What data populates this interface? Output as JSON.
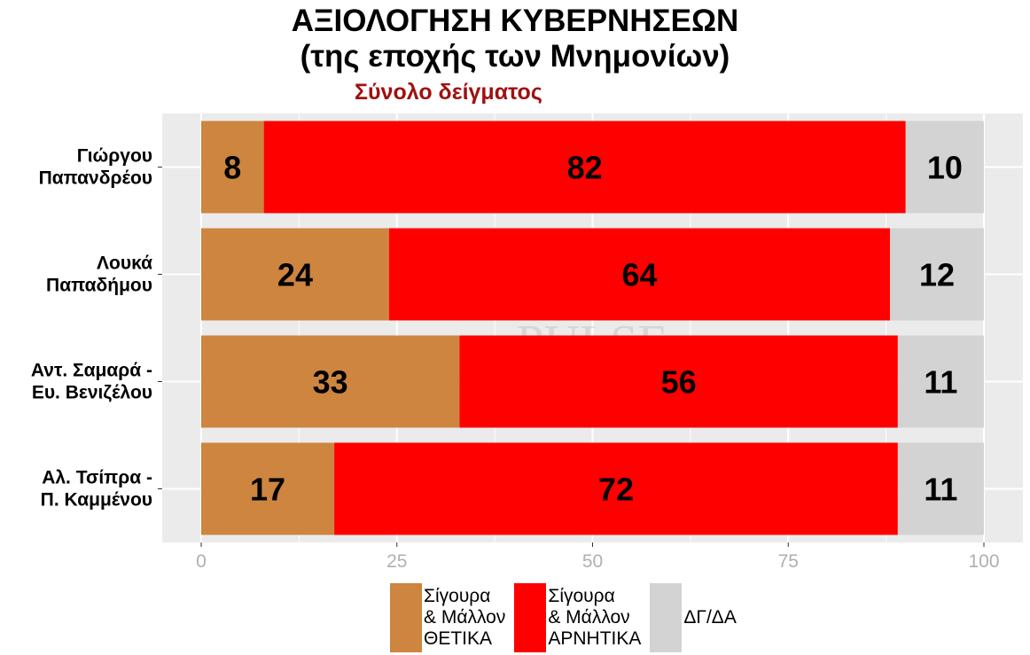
{
  "title_line1": "ΑΞΙΟΛΟΓΗΣΗ ΚΥΒΕΡΝΗΣΕΩΝ",
  "title_line2": "(της εποχής των Μνημονίων)",
  "subtitle": "Σύνολο δείγματος",
  "watermark": "PULSE RESEARCH & CONSULTING",
  "colors": {
    "positive": "#cd853f",
    "negative": "#ff0000",
    "dk": "#d3d3d3",
    "panel": "#ebebeb",
    "subtitle": "#a01010"
  },
  "legend": [
    {
      "key": "positive",
      "label": "Σίγουρα\n& Μάλλον\nΘΕΤΙΚΑ"
    },
    {
      "key": "negative",
      "label": "Σίγουρα\n& Μάλλον\nΑΡΝΗΤΙΚΑ"
    },
    {
      "key": "dk",
      "label": "ΔΓ/ΔΑ"
    }
  ],
  "chart_data": {
    "type": "bar",
    "orientation": "horizontal",
    "stacked": true,
    "categories": [
      [
        "Γιώργου",
        "Παπανδρέου"
      ],
      [
        "Λουκά",
        "Παπαδήμου"
      ],
      [
        "Αντ. Σαμαρά -",
        "Ευ. Βενιζέλου"
      ],
      [
        "Αλ. Τσίπρα -",
        "Π. Καμμένου"
      ]
    ],
    "series": [
      {
        "key": "positive",
        "name": "Σίγουρα & Μάλλον ΘΕΤΙΚΑ",
        "values": [
          8,
          24,
          33,
          17
        ]
      },
      {
        "key": "negative",
        "name": "Σίγουρα & Μάλλον ΑΡΝΗΤΙΚΑ",
        "values": [
          82,
          64,
          56,
          72
        ]
      },
      {
        "key": "dk",
        "name": "ΔΓ/ΔΑ",
        "values": [
          10,
          12,
          11,
          11
        ]
      }
    ],
    "xlim": [
      0,
      100
    ],
    "xticks": [
      0,
      25,
      50,
      75,
      100
    ],
    "grid": true,
    "legend_position": "bottom"
  }
}
